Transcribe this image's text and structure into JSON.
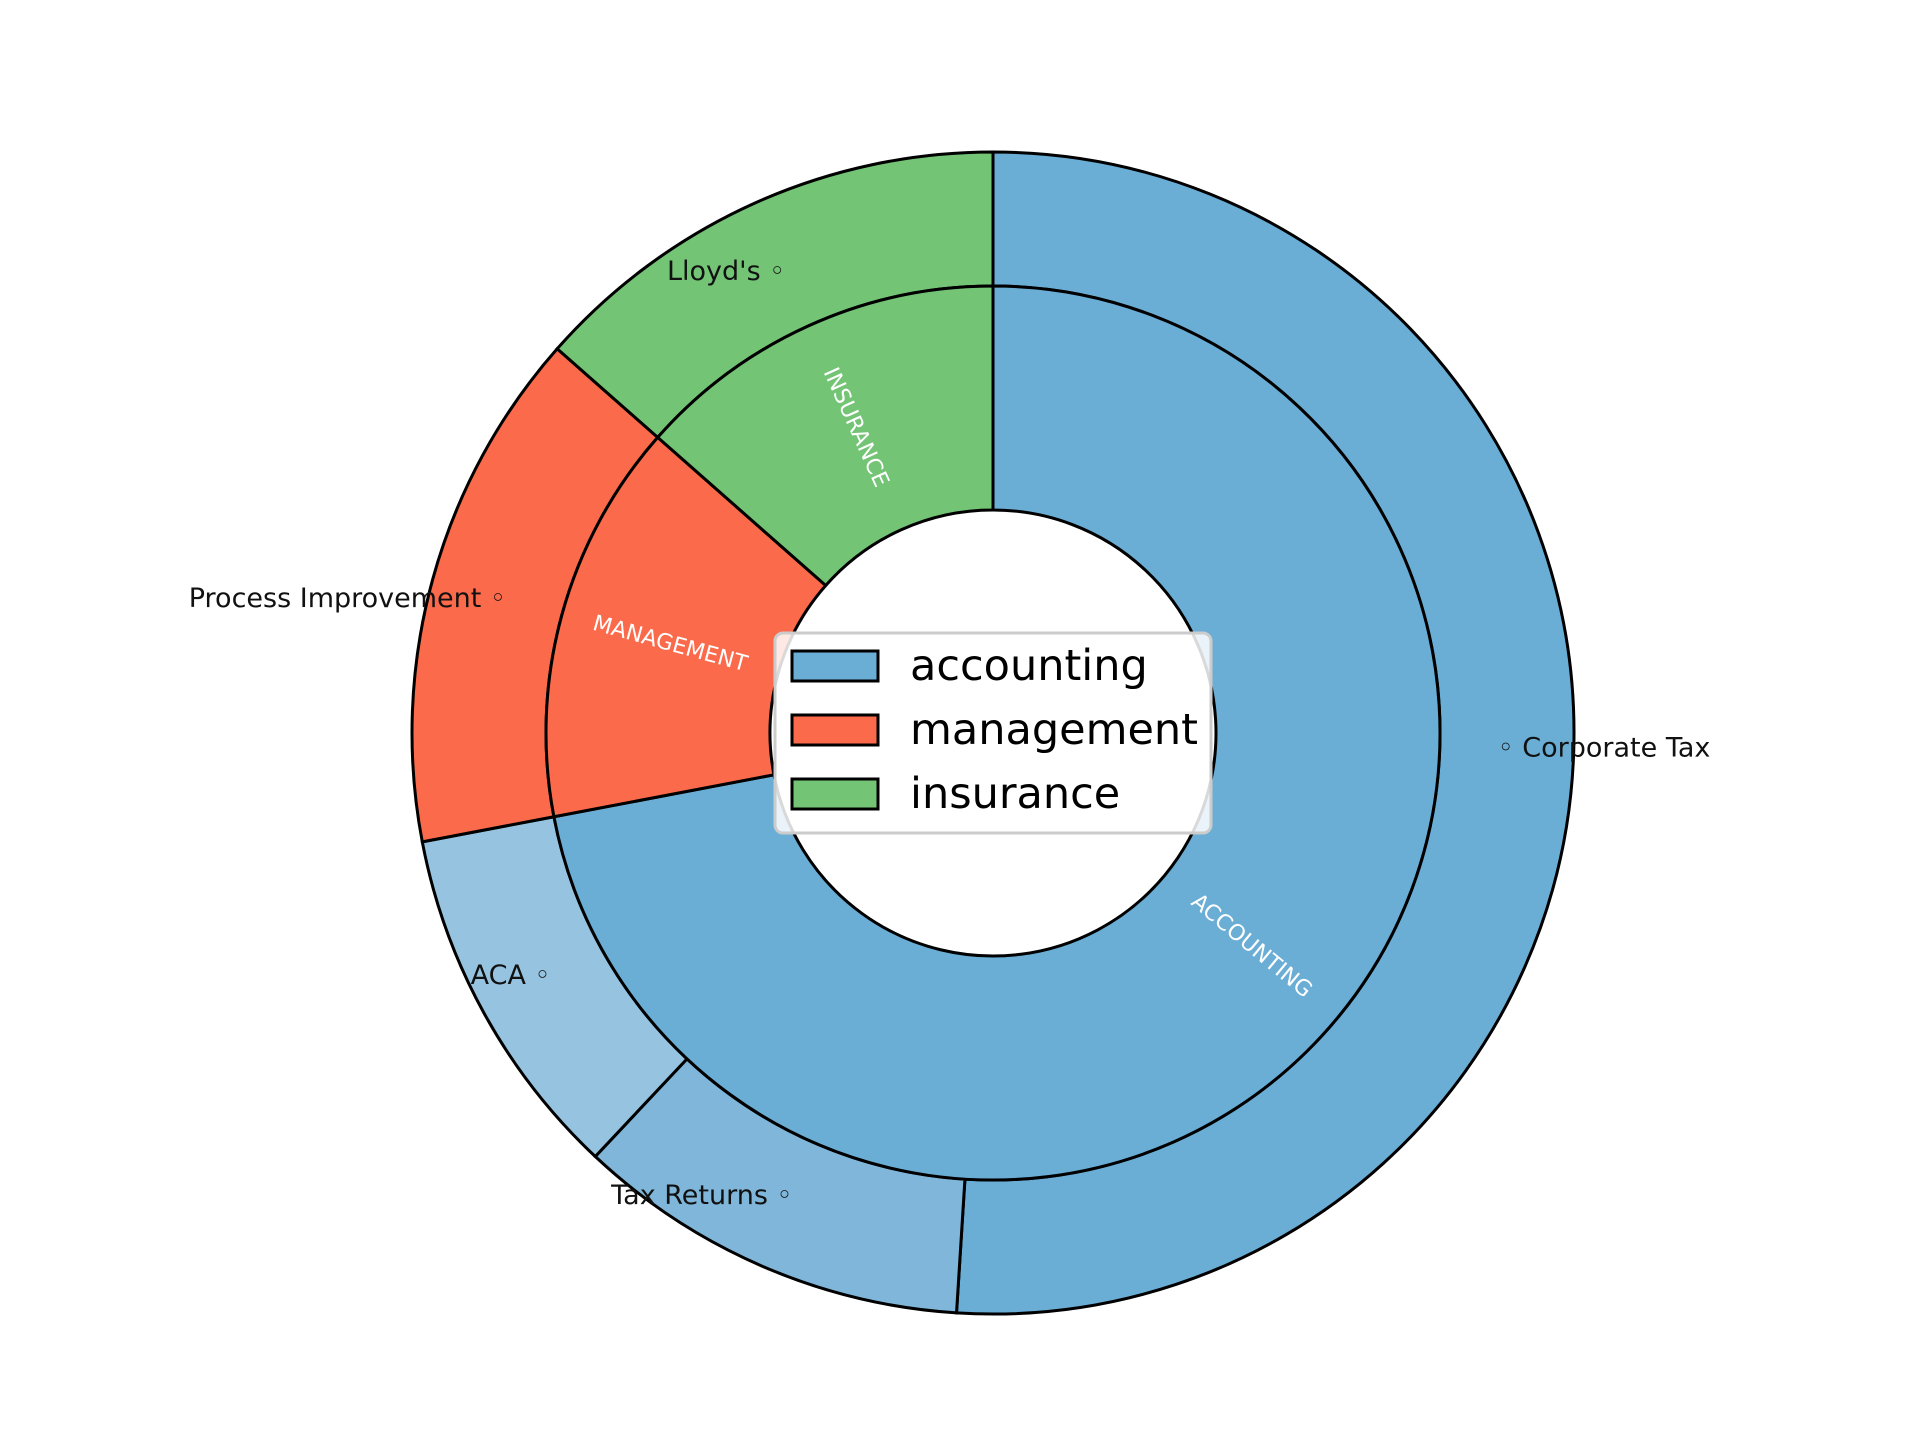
{
  "chart_data": {
    "type": "pie",
    "variant": "nested-donut",
    "start": "top",
    "direction": "clockwise",
    "inner_ring": {
      "categories": [
        "accounting",
        "management",
        "insurance"
      ],
      "values": [
        72,
        14.5,
        13.5
      ],
      "labels": [
        "ACCOUNTING",
        "MANAGEMENT",
        "INSURANCE"
      ],
      "colors": [
        "#6aadd5",
        "#fb6a4a",
        "#74c476"
      ]
    },
    "outer_ring": {
      "categories": [
        "Corporate Tax",
        "Tax Returns",
        "ACA",
        "Process Improvement",
        "Lloyd's"
      ],
      "values": [
        51,
        11,
        10,
        14.5,
        13.5
      ],
      "groups": [
        "accounting",
        "accounting",
        "accounting",
        "management",
        "insurance"
      ],
      "label_texts": [
        "◦ Corporate Tax",
        "Tax Returns ◦",
        "ACA ◦",
        "Process Improvement ◦",
        "Lloyd's ◦"
      ],
      "colors": [
        "#6aadd5",
        "#7fb6d9",
        "#96c4e0",
        "#fb6a4a",
        "#74c476"
      ]
    },
    "legend": {
      "placement": "center",
      "entries": [
        "accounting",
        "management",
        "insurance"
      ],
      "colors": [
        "#6aadd5",
        "#fb6a4a",
        "#74c476"
      ]
    }
  }
}
